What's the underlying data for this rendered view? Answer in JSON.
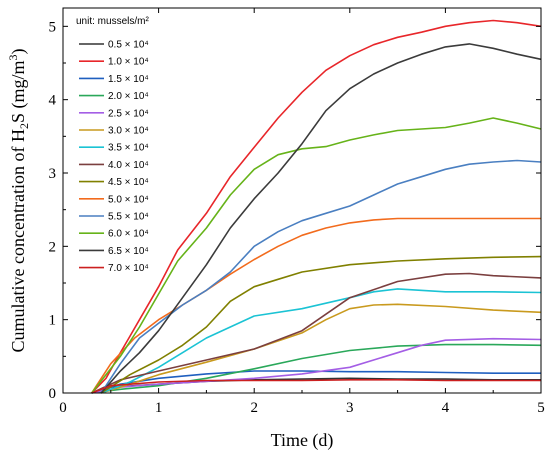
{
  "chart_data": {
    "type": "line",
    "xlabel": "Time (d)",
    "ylabel_parts": [
      "Cumulative concentration of H",
      "2",
      "S (mg/m",
      "3",
      ")"
    ],
    "xlim": [
      0,
      5
    ],
    "ylim": [
      0,
      5.25
    ],
    "x_ticks": [
      0,
      1,
      2,
      3,
      4,
      5
    ],
    "y_ticks": [
      0,
      1,
      2,
      3,
      4,
      5
    ],
    "grid": false,
    "legend_position": "top-left",
    "legend_title": "unit: mussels/m²",
    "series": [
      {
        "name": "0.5 × 10⁴",
        "color": "#333333",
        "points": [
          [
            0.3,
            0
          ],
          [
            0.5,
            0.08
          ],
          [
            1,
            0.12
          ],
          [
            1.5,
            0.16
          ],
          [
            2,
            0.18
          ],
          [
            2.5,
            0.19
          ],
          [
            3,
            0.2
          ],
          [
            3.5,
            0.19
          ],
          [
            4,
            0.19
          ],
          [
            4.5,
            0.18
          ],
          [
            5,
            0.18
          ]
        ]
      },
      {
        "name": "1.0 × 10⁴",
        "color": "#e8262a",
        "points": [
          [
            0.3,
            0
          ],
          [
            0.45,
            0.2
          ],
          [
            0.6,
            0.55
          ],
          [
            0.8,
            1.0
          ],
          [
            1,
            1.45
          ],
          [
            1.2,
            1.95
          ],
          [
            1.5,
            2.45
          ],
          [
            1.75,
            2.95
          ],
          [
            2,
            3.35
          ],
          [
            2.25,
            3.75
          ],
          [
            2.5,
            4.1
          ],
          [
            2.75,
            4.4
          ],
          [
            3,
            4.6
          ],
          [
            3.25,
            4.75
          ],
          [
            3.5,
            4.85
          ],
          [
            3.75,
            4.92
          ],
          [
            4,
            5.0
          ],
          [
            4.25,
            5.05
          ],
          [
            4.5,
            5.08
          ],
          [
            4.75,
            5.05
          ],
          [
            5,
            5.0
          ]
        ]
      },
      {
        "name": "1.5 × 10⁴",
        "color": "#1f5fbf",
        "points": [
          [
            0.3,
            0
          ],
          [
            0.6,
            0.12
          ],
          [
            1,
            0.2
          ],
          [
            1.5,
            0.26
          ],
          [
            2,
            0.3
          ],
          [
            2.5,
            0.3
          ],
          [
            3,
            0.29
          ],
          [
            3.5,
            0.29
          ],
          [
            4,
            0.28
          ],
          [
            4.5,
            0.27
          ],
          [
            5,
            0.27
          ]
        ]
      },
      {
        "name": "2.0 × 10⁴",
        "color": "#2aa85a",
        "points": [
          [
            0.3,
            0
          ],
          [
            0.6,
            0.05
          ],
          [
            1,
            0.1
          ],
          [
            1.5,
            0.2
          ],
          [
            2,
            0.33
          ],
          [
            2.5,
            0.47
          ],
          [
            3,
            0.58
          ],
          [
            3.5,
            0.64
          ],
          [
            4,
            0.66
          ],
          [
            4.5,
            0.66
          ],
          [
            5,
            0.65
          ]
        ]
      },
      {
        "name": "2.5 × 10⁴",
        "color": "#a45ee5",
        "points": [
          [
            0.3,
            0
          ],
          [
            0.6,
            0.08
          ],
          [
            1,
            0.12
          ],
          [
            1.5,
            0.16
          ],
          [
            2,
            0.2
          ],
          [
            2.5,
            0.26
          ],
          [
            3,
            0.35
          ],
          [
            3.5,
            0.55
          ],
          [
            3.75,
            0.65
          ],
          [
            4,
            0.72
          ],
          [
            4.5,
            0.74
          ],
          [
            5,
            0.73
          ]
        ]
      },
      {
        "name": "3.0 × 10⁴",
        "color": "#c99a1e",
        "points": [
          [
            0.4,
            0
          ],
          [
            0.7,
            0.12
          ],
          [
            1,
            0.25
          ],
          [
            1.5,
            0.42
          ],
          [
            2,
            0.6
          ],
          [
            2.5,
            0.82
          ],
          [
            2.75,
            1.0
          ],
          [
            3,
            1.15
          ],
          [
            3.25,
            1.2
          ],
          [
            3.5,
            1.21
          ],
          [
            4,
            1.18
          ],
          [
            4.5,
            1.13
          ],
          [
            5,
            1.1
          ]
        ]
      },
      {
        "name": "3.5 × 10⁴",
        "color": "#1bc3d4",
        "points": [
          [
            0.4,
            0
          ],
          [
            0.7,
            0.15
          ],
          [
            1,
            0.35
          ],
          [
            1.25,
            0.55
          ],
          [
            1.5,
            0.75
          ],
          [
            1.75,
            0.9
          ],
          [
            2,
            1.05
          ],
          [
            2.5,
            1.15
          ],
          [
            3,
            1.3
          ],
          [
            3.25,
            1.38
          ],
          [
            3.5,
            1.42
          ],
          [
            4,
            1.38
          ],
          [
            4.5,
            1.38
          ],
          [
            5,
            1.37
          ]
        ]
      },
      {
        "name": "4.0 × 10⁴",
        "color": "#7b3f3f",
        "points": [
          [
            0.3,
            0
          ],
          [
            0.6,
            0.18
          ],
          [
            1,
            0.3
          ],
          [
            1.5,
            0.45
          ],
          [
            2,
            0.6
          ],
          [
            2.5,
            0.85
          ],
          [
            3,
            1.3
          ],
          [
            3.5,
            1.52
          ],
          [
            4,
            1.62
          ],
          [
            4.25,
            1.63
          ],
          [
            4.5,
            1.6
          ],
          [
            5,
            1.57
          ]
        ]
      },
      {
        "name": "4.5 × 10⁴",
        "color": "#808000",
        "points": [
          [
            0.4,
            0
          ],
          [
            0.7,
            0.25
          ],
          [
            1,
            0.45
          ],
          [
            1.25,
            0.65
          ],
          [
            1.5,
            0.9
          ],
          [
            1.75,
            1.25
          ],
          [
            2,
            1.45
          ],
          [
            2.25,
            1.55
          ],
          [
            2.5,
            1.65
          ],
          [
            3,
            1.75
          ],
          [
            3.5,
            1.8
          ],
          [
            4,
            1.83
          ],
          [
            4.5,
            1.85
          ],
          [
            5,
            1.86
          ]
        ]
      },
      {
        "name": "5.0 × 10⁴",
        "color": "#f26b1d",
        "points": [
          [
            0.3,
            0
          ],
          [
            0.5,
            0.4
          ],
          [
            0.75,
            0.75
          ],
          [
            1,
            1.0
          ],
          [
            1.25,
            1.2
          ],
          [
            1.5,
            1.4
          ],
          [
            1.75,
            1.62
          ],
          [
            2,
            1.82
          ],
          [
            2.25,
            2.0
          ],
          [
            2.5,
            2.15
          ],
          [
            2.75,
            2.25
          ],
          [
            3,
            2.32
          ],
          [
            3.25,
            2.36
          ],
          [
            3.5,
            2.38
          ],
          [
            4,
            2.38
          ],
          [
            4.5,
            2.38
          ],
          [
            5,
            2.38
          ]
        ]
      },
      {
        "name": "5.5 × 10⁴",
        "color": "#4a7fc1",
        "points": [
          [
            0.4,
            0
          ],
          [
            0.6,
            0.4
          ],
          [
            0.8,
            0.75
          ],
          [
            1,
            0.95
          ],
          [
            1.25,
            1.2
          ],
          [
            1.5,
            1.4
          ],
          [
            1.75,
            1.65
          ],
          [
            2,
            2.0
          ],
          [
            2.25,
            2.2
          ],
          [
            2.5,
            2.35
          ],
          [
            2.75,
            2.45
          ],
          [
            3,
            2.55
          ],
          [
            3.25,
            2.7
          ],
          [
            3.5,
            2.85
          ],
          [
            3.75,
            2.95
          ],
          [
            4,
            3.05
          ],
          [
            4.25,
            3.12
          ],
          [
            4.5,
            3.15
          ],
          [
            4.75,
            3.17
          ],
          [
            5,
            3.15
          ]
        ]
      },
      {
        "name": "6.0 × 10⁴",
        "color": "#66b319",
        "points": [
          [
            0.3,
            0
          ],
          [
            0.45,
            0.25
          ],
          [
            0.6,
            0.5
          ],
          [
            0.8,
            0.9
          ],
          [
            1,
            1.35
          ],
          [
            1.2,
            1.8
          ],
          [
            1.5,
            2.25
          ],
          [
            1.75,
            2.7
          ],
          [
            2,
            3.05
          ],
          [
            2.25,
            3.25
          ],
          [
            2.5,
            3.33
          ],
          [
            2.75,
            3.36
          ],
          [
            3,
            3.45
          ],
          [
            3.25,
            3.52
          ],
          [
            3.5,
            3.58
          ],
          [
            3.75,
            3.6
          ],
          [
            4,
            3.62
          ],
          [
            4.25,
            3.68
          ],
          [
            4.5,
            3.75
          ],
          [
            4.75,
            3.68
          ],
          [
            5,
            3.6
          ]
        ]
      },
      {
        "name": "6.5 × 10⁴",
        "color": "#3b3b3b",
        "points": [
          [
            0.4,
            0
          ],
          [
            0.6,
            0.3
          ],
          [
            0.8,
            0.55
          ],
          [
            1,
            0.85
          ],
          [
            1.25,
            1.3
          ],
          [
            1.5,
            1.75
          ],
          [
            1.75,
            2.25
          ],
          [
            2,
            2.65
          ],
          [
            2.25,
            3.0
          ],
          [
            2.5,
            3.4
          ],
          [
            2.75,
            3.85
          ],
          [
            3,
            4.15
          ],
          [
            3.25,
            4.35
          ],
          [
            3.5,
            4.5
          ],
          [
            3.75,
            4.62
          ],
          [
            4,
            4.72
          ],
          [
            4.25,
            4.76
          ],
          [
            4.5,
            4.7
          ],
          [
            4.75,
            4.62
          ],
          [
            5,
            4.55
          ]
        ]
      },
      {
        "name": "7.0 × 10⁴",
        "color": "#cc2020",
        "points": [
          [
            0.3,
            0
          ],
          [
            0.5,
            0.1
          ],
          [
            1,
            0.15
          ],
          [
            1.5,
            0.17
          ],
          [
            2,
            0.17
          ],
          [
            2.5,
            0.17
          ],
          [
            3,
            0.18
          ],
          [
            3.5,
            0.18
          ],
          [
            4,
            0.17
          ],
          [
            4.5,
            0.17
          ],
          [
            5,
            0.17
          ]
        ]
      }
    ]
  }
}
